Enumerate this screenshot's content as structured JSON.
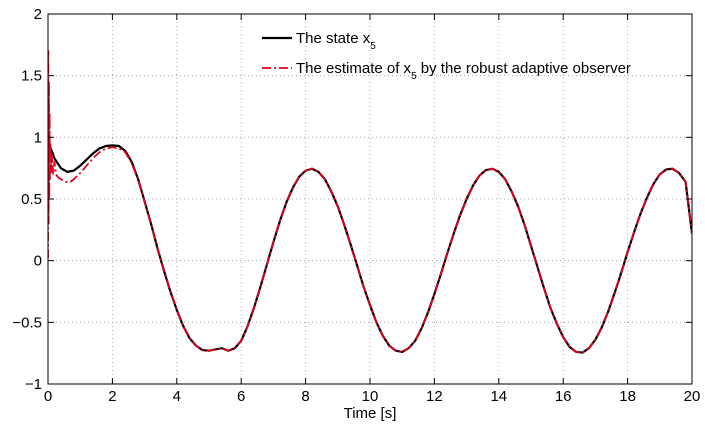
{
  "chart_data": {
    "type": "line",
    "title": "",
    "xlabel": "Time [s]",
    "ylabel": "",
    "xlim": [
      0,
      20
    ],
    "ylim": [
      -1,
      2
    ],
    "xticks": [
      0,
      2,
      4,
      6,
      8,
      10,
      12,
      14,
      16,
      18,
      20
    ],
    "yticks": [
      -1,
      -0.5,
      0,
      0.5,
      1,
      1.5,
      2
    ],
    "xtick_labels": [
      "0",
      "2",
      "4",
      "6",
      "8",
      "10",
      "12",
      "14",
      "16",
      "18",
      "20"
    ],
    "ytick_labels": [
      "−1",
      "−0.5",
      "0",
      "0.5",
      "1",
      "1.5",
      "2"
    ],
    "grid": true,
    "legend_position": "top-right",
    "legend": [
      {
        "prefix": "The state x",
        "subscript": "5",
        "suffix": ""
      },
      {
        "prefix": "The estimate of x",
        "subscript": "5",
        "suffix": " by the robust adaptive observer"
      }
    ],
    "series": [
      {
        "name": "The state x5",
        "color": "#000000",
        "style": "solid",
        "x": [
          0,
          0.2,
          0.4,
          0.6,
          0.8,
          1.0,
          1.2,
          1.4,
          1.6,
          1.8,
          2.0,
          2.2,
          2.4,
          2.6,
          2.8,
          3.0,
          3.2,
          3.4,
          3.6,
          3.8,
          4.0,
          4.2,
          4.4,
          4.6,
          4.8,
          5.0,
          5.2,
          5.4,
          5.6,
          5.8,
          6.0,
          6.2,
          6.4,
          6.6,
          6.8,
          7.0,
          7.2,
          7.4,
          7.6,
          7.8,
          8.0,
          8.2,
          8.4,
          8.6,
          8.8,
          9.0,
          9.2,
          9.4,
          9.6,
          9.8,
          10.0,
          10.2,
          10.4,
          10.6,
          10.8,
          11.0,
          11.2,
          11.4,
          11.6,
          11.8,
          12.0,
          12.2,
          12.4,
          12.6,
          12.8,
          13.0,
          13.2,
          13.4,
          13.6,
          13.8,
          14.0,
          14.2,
          14.4,
          14.6,
          14.8,
          15.0,
          15.2,
          15.4,
          15.6,
          15.8,
          16.0,
          16.2,
          16.4,
          16.6,
          16.8,
          17.0,
          17.2,
          17.4,
          17.6,
          17.8,
          18.0,
          18.2,
          18.4,
          18.6,
          18.8,
          19.0,
          19.2,
          19.4,
          19.6,
          19.8,
          20.0
        ],
        "y": [
          0.97,
          0.83,
          0.75,
          0.72,
          0.73,
          0.77,
          0.82,
          0.87,
          0.91,
          0.93,
          0.935,
          0.93,
          0.89,
          0.8,
          0.66,
          0.48,
          0.3,
          0.1,
          -0.08,
          -0.25,
          -0.4,
          -0.53,
          -0.63,
          -0.69,
          -0.725,
          -0.73,
          -0.72,
          -0.71,
          -0.73,
          -0.71,
          -0.65,
          -0.53,
          -0.38,
          -0.21,
          -0.03,
          0.15,
          0.32,
          0.47,
          0.59,
          0.68,
          0.73,
          0.745,
          0.72,
          0.66,
          0.56,
          0.44,
          0.29,
          0.13,
          -0.04,
          -0.21,
          -0.36,
          -0.5,
          -0.61,
          -0.69,
          -0.73,
          -0.74,
          -0.71,
          -0.65,
          -0.55,
          -0.42,
          -0.27,
          -0.11,
          0.06,
          0.22,
          0.37,
          0.5,
          0.61,
          0.69,
          0.735,
          0.745,
          0.72,
          0.66,
          0.56,
          0.44,
          0.29,
          0.12,
          -0.05,
          -0.22,
          -0.38,
          -0.51,
          -0.62,
          -0.7,
          -0.74,
          -0.745,
          -0.71,
          -0.64,
          -0.54,
          -0.41,
          -0.26,
          -0.1,
          0.07,
          0.23,
          0.38,
          0.51,
          0.62,
          0.7,
          0.74,
          0.745,
          0.71,
          0.64,
          0.22
        ]
      },
      {
        "name": "The estimate of x5 by the robust adaptive observer",
        "color": "#e0001b",
        "style": "dashdot",
        "x": [
          0,
          0.01,
          0.02,
          0.03,
          0.04,
          0.05,
          0.06,
          0.08,
          0.1,
          0.13,
          0.16,
          0.2,
          0.25,
          0.3,
          0.4,
          0.5,
          0.6,
          0.7,
          0.8,
          1.0,
          1.2,
          1.4,
          1.6,
          1.8,
          2.0,
          2.2,
          2.4,
          2.6,
          2.8,
          3.0,
          3.2,
          3.4,
          3.6,
          3.8,
          4.0,
          4.2,
          4.4,
          4.6,
          4.8,
          5.0,
          5.2,
          5.4,
          5.6,
          5.8,
          6.0,
          6.2,
          6.4,
          6.6,
          6.8,
          7.0,
          7.2,
          7.4,
          7.6,
          7.8,
          8.0,
          8.2,
          8.4,
          8.6,
          8.8,
          9.0,
          9.2,
          9.4,
          9.6,
          9.8,
          10.0,
          10.2,
          10.4,
          10.6,
          10.8,
          11.0,
          11.2,
          11.4,
          11.6,
          11.8,
          12.0,
          12.2,
          12.4,
          12.6,
          12.8,
          13.0,
          13.2,
          13.4,
          13.6,
          13.8,
          14.0,
          14.2,
          14.4,
          14.6,
          14.8,
          15.0,
          15.2,
          15.4,
          15.6,
          15.8,
          16.0,
          16.2,
          16.4,
          16.6,
          16.8,
          17.0,
          17.2,
          17.4,
          17.6,
          17.8,
          18.0,
          18.2,
          18.4,
          18.6,
          18.8,
          19.0,
          19.2,
          19.4,
          19.6,
          19.8,
          20.0
        ],
        "y": [
          0.02,
          1.7,
          0.3,
          1.45,
          0.5,
          1.2,
          0.65,
          0.95,
          0.72,
          0.85,
          0.7,
          0.8,
          0.7,
          0.68,
          0.66,
          0.645,
          0.635,
          0.64,
          0.66,
          0.71,
          0.77,
          0.83,
          0.88,
          0.91,
          0.92,
          0.91,
          0.88,
          0.79,
          0.66,
          0.48,
          0.3,
          0.1,
          -0.08,
          -0.25,
          -0.4,
          -0.53,
          -0.63,
          -0.69,
          -0.725,
          -0.73,
          -0.72,
          -0.71,
          -0.73,
          -0.71,
          -0.65,
          -0.53,
          -0.38,
          -0.21,
          -0.03,
          0.15,
          0.32,
          0.47,
          0.59,
          0.68,
          0.73,
          0.745,
          0.72,
          0.66,
          0.56,
          0.44,
          0.29,
          0.13,
          -0.04,
          -0.21,
          -0.36,
          -0.5,
          -0.61,
          -0.69,
          -0.73,
          -0.74,
          -0.71,
          -0.65,
          -0.55,
          -0.42,
          -0.27,
          -0.11,
          0.06,
          0.22,
          0.37,
          0.5,
          0.61,
          0.69,
          0.735,
          0.745,
          0.72,
          0.66,
          0.56,
          0.44,
          0.29,
          0.12,
          -0.05,
          -0.22,
          -0.38,
          -0.51,
          -0.62,
          -0.7,
          -0.74,
          -0.745,
          -0.71,
          -0.64,
          -0.54,
          -0.41,
          -0.26,
          -0.1,
          0.07,
          0.23,
          0.38,
          0.51,
          0.62,
          0.7,
          0.74,
          0.745,
          0.71,
          0.64,
          0.22
        ]
      }
    ]
  }
}
